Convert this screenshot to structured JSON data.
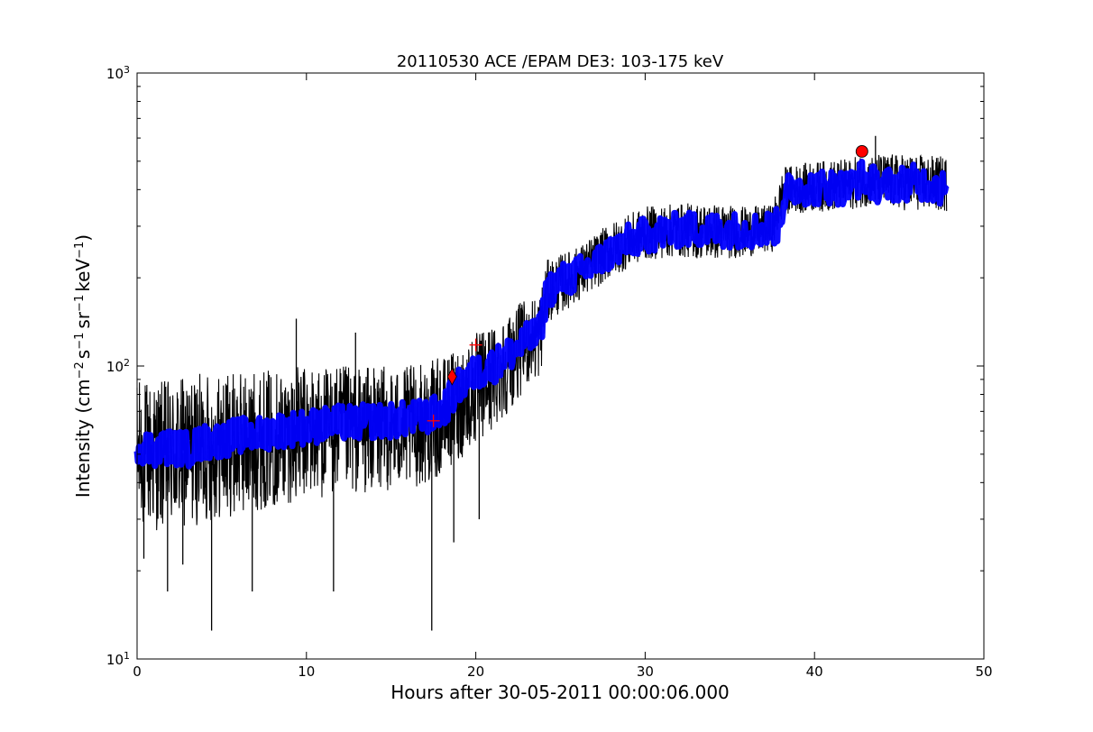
{
  "chart_data": {
    "type": "line",
    "title": "20110530 ACE /EPAM DE3: 103-175 keV",
    "xlabel": "Hours after 30-05-2011 00:00:06.000",
    "ylabel": {
      "prefix": "Intensity (cm",
      "exp1": "−2",
      "mid1": "s",
      "exp2": "−1",
      "mid2": "sr",
      "exp3": "−1",
      "mid3": "keV",
      "exp4": "−1",
      "suffix": ")"
    },
    "xlim": [
      0,
      50
    ],
    "ylim": [
      10,
      1000
    ],
    "yscale": "log",
    "grid": false,
    "x_ticks": [
      {
        "value": 0,
        "label": "0"
      },
      {
        "value": 10,
        "label": "10"
      },
      {
        "value": 20,
        "label": "20"
      },
      {
        "value": 30,
        "label": "30"
      },
      {
        "value": 40,
        "label": "40"
      },
      {
        "value": 50,
        "label": "50"
      }
    ],
    "y_ticks": [
      {
        "value": 10,
        "base": "10",
        "exp": "1"
      },
      {
        "value": 100,
        "base": "10",
        "exp": "2"
      },
      {
        "value": 1000,
        "base": "10",
        "exp": "3"
      }
    ],
    "series": [
      {
        "role": "raw",
        "color": "#000000",
        "envelope": [
          {
            "x": 0,
            "low": 28,
            "high": 90
          },
          {
            "x": 2,
            "low": 27,
            "high": 90
          },
          {
            "x": 4,
            "low": 29,
            "high": 95
          },
          {
            "x": 6,
            "low": 31,
            "high": 95
          },
          {
            "x": 8,
            "low": 33,
            "high": 98
          },
          {
            "x": 10,
            "low": 35,
            "high": 100
          },
          {
            "x": 12,
            "low": 36,
            "high": 100
          },
          {
            "x": 14,
            "low": 37,
            "high": 100
          },
          {
            "x": 16,
            "low": 38,
            "high": 100
          },
          {
            "x": 17.5,
            "low": 40,
            "high": 105
          },
          {
            "x": 18.5,
            "low": 45,
            "high": 110
          },
          {
            "x": 19.5,
            "low": 50,
            "high": 125
          },
          {
            "x": 21,
            "low": 60,
            "high": 140
          },
          {
            "x": 22,
            "low": 70,
            "high": 155
          },
          {
            "x": 23,
            "low": 85,
            "high": 170
          },
          {
            "x": 23.8,
            "low": 90,
            "high": 180
          },
          {
            "x": 24.2,
            "low": 140,
            "high": 230
          },
          {
            "x": 26,
            "low": 165,
            "high": 255
          },
          {
            "x": 28,
            "low": 200,
            "high": 310
          },
          {
            "x": 30,
            "low": 230,
            "high": 350
          },
          {
            "x": 32,
            "low": 235,
            "high": 360
          },
          {
            "x": 34,
            "low": 230,
            "high": 360
          },
          {
            "x": 36,
            "low": 235,
            "high": 350
          },
          {
            "x": 37.5,
            "low": 245,
            "high": 355
          },
          {
            "x": 38.2,
            "low": 330,
            "high": 480
          },
          {
            "x": 40,
            "low": 335,
            "high": 500
          },
          {
            "x": 42,
            "low": 340,
            "high": 510
          },
          {
            "x": 43,
            "low": 350,
            "high": 530
          },
          {
            "x": 45,
            "low": 340,
            "high": 530
          },
          {
            "x": 47.8,
            "low": 335,
            "high": 520
          }
        ],
        "spikes": [
          {
            "x": 0.4,
            "y": 22
          },
          {
            "x": 1.8,
            "y": 17
          },
          {
            "x": 2.7,
            "y": 21
          },
          {
            "x": 4.4,
            "y": 12.5
          },
          {
            "x": 6.8,
            "y": 17
          },
          {
            "x": 9.4,
            "y": 145
          },
          {
            "x": 11.6,
            "y": 17
          },
          {
            "x": 12.9,
            "y": 130
          },
          {
            "x": 17.4,
            "y": 12.5
          },
          {
            "x": 18.7,
            "y": 25
          },
          {
            "x": 20.2,
            "y": 30
          },
          {
            "x": 43.6,
            "y": 610
          }
        ]
      },
      {
        "role": "smoothed",
        "color": "#0000ff",
        "points": [
          {
            "x": 0,
            "y": 54
          },
          {
            "x": 1,
            "y": 52
          },
          {
            "x": 2,
            "y": 53
          },
          {
            "x": 3,
            "y": 52
          },
          {
            "x": 4,
            "y": 55
          },
          {
            "x": 5,
            "y": 56
          },
          {
            "x": 6,
            "y": 58
          },
          {
            "x": 7,
            "y": 58
          },
          {
            "x": 8,
            "y": 60
          },
          {
            "x": 9,
            "y": 61
          },
          {
            "x": 10,
            "y": 62
          },
          {
            "x": 11,
            "y": 63
          },
          {
            "x": 12,
            "y": 64
          },
          {
            "x": 13,
            "y": 64
          },
          {
            "x": 14,
            "y": 65
          },
          {
            "x": 15,
            "y": 65
          },
          {
            "x": 16,
            "y": 66
          },
          {
            "x": 17,
            "y": 67
          },
          {
            "x": 18,
            "y": 70
          },
          {
            "x": 19,
            "y": 85
          },
          {
            "x": 20,
            "y": 95
          },
          {
            "x": 21,
            "y": 100
          },
          {
            "x": 22,
            "y": 110
          },
          {
            "x": 23,
            "y": 122
          },
          {
            "x": 23.8,
            "y": 130
          },
          {
            "x": 24.2,
            "y": 180
          },
          {
            "x": 25,
            "y": 195
          },
          {
            "x": 26,
            "y": 205
          },
          {
            "x": 27,
            "y": 222
          },
          {
            "x": 28,
            "y": 245
          },
          {
            "x": 29,
            "y": 265
          },
          {
            "x": 30,
            "y": 280
          },
          {
            "x": 31,
            "y": 285
          },
          {
            "x": 32,
            "y": 292
          },
          {
            "x": 33,
            "y": 293
          },
          {
            "x": 34,
            "y": 290
          },
          {
            "x": 35,
            "y": 292
          },
          {
            "x": 36,
            "y": 290
          },
          {
            "x": 37,
            "y": 292
          },
          {
            "x": 37.8,
            "y": 300
          },
          {
            "x": 38.3,
            "y": 390
          },
          {
            "x": 39,
            "y": 410
          },
          {
            "x": 40,
            "y": 405
          },
          {
            "x": 41,
            "y": 410
          },
          {
            "x": 42,
            "y": 405
          },
          {
            "x": 42.8,
            "y": 440
          },
          {
            "x": 43.5,
            "y": 420
          },
          {
            "x": 44,
            "y": 410
          },
          {
            "x": 45,
            "y": 420
          },
          {
            "x": 46,
            "y": 425
          },
          {
            "x": 47,
            "y": 415
          },
          {
            "x": 47.8,
            "y": 400
          }
        ]
      }
    ],
    "markers": [
      {
        "shape": "plus",
        "x": 17.5,
        "y": 65,
        "color": "#ff0000"
      },
      {
        "shape": "diamond",
        "x": 18.6,
        "y": 92,
        "color": "#ff0000"
      },
      {
        "shape": "plus",
        "x": 20.0,
        "y": 118,
        "color": "#ff0000"
      },
      {
        "shape": "circle",
        "x": 42.8,
        "y": 540,
        "color": "#ff0000"
      }
    ]
  }
}
